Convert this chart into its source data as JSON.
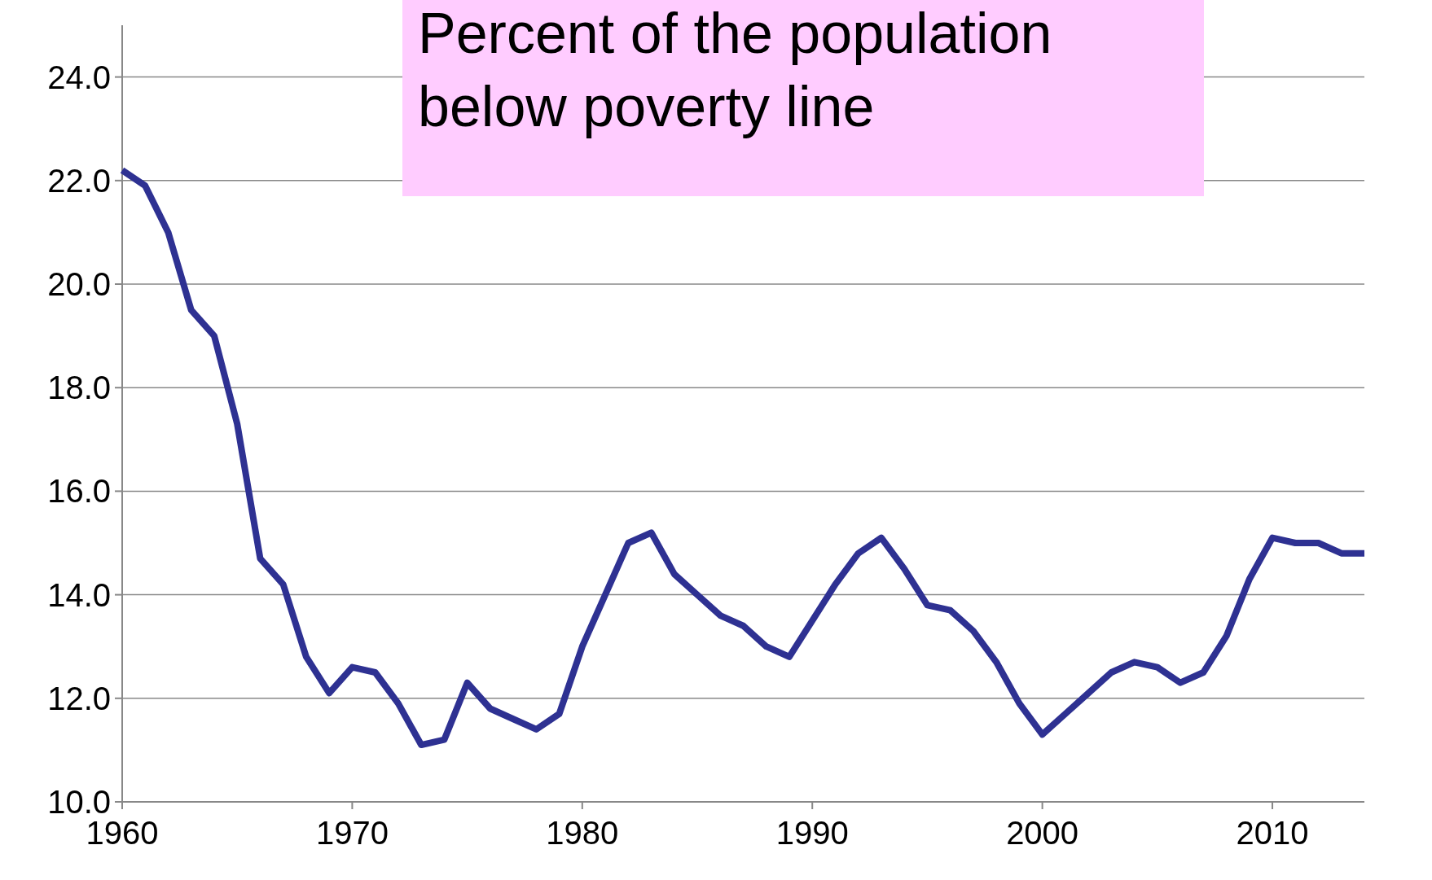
{
  "chart_data": {
    "type": "line",
    "title": "Percent of the population below poverty line",
    "x": [
      1960,
      1961,
      1962,
      1963,
      1964,
      1965,
      1966,
      1967,
      1968,
      1969,
      1970,
      1971,
      1972,
      1973,
      1974,
      1975,
      1976,
      1977,
      1978,
      1979,
      1980,
      1981,
      1982,
      1983,
      1984,
      1985,
      1986,
      1987,
      1988,
      1989,
      1990,
      1991,
      1992,
      1993,
      1994,
      1995,
      1996,
      1997,
      1998,
      1999,
      2000,
      2001,
      2002,
      2003,
      2004,
      2005,
      2006,
      2007,
      2008,
      2009,
      2010,
      2011,
      2012,
      2013,
      2014
    ],
    "series": [
      {
        "color": "#2e3192",
        "values": [
          22.2,
          21.9,
          21.0,
          19.5,
          19.0,
          17.3,
          14.7,
          14.2,
          12.8,
          12.1,
          12.6,
          12.5,
          11.9,
          11.1,
          11.2,
          12.3,
          11.8,
          11.6,
          11.4,
          11.7,
          13.0,
          14.0,
          15.0,
          15.2,
          14.4,
          14.0,
          13.6,
          13.4,
          13.0,
          12.8,
          13.5,
          14.2,
          14.8,
          15.1,
          14.5,
          13.8,
          13.7,
          13.3,
          12.7,
          11.9,
          11.3,
          11.7,
          12.1,
          12.5,
          12.7,
          12.6,
          12.3,
          12.5,
          13.2,
          14.3,
          15.1,
          15.0,
          15.0,
          14.8,
          14.8
        ]
      }
    ],
    "xlim": [
      1960,
      2014
    ],
    "xticks": [
      1960,
      1970,
      1980,
      1990,
      2000,
      2010
    ],
    "ylim": [
      10,
      25
    ],
    "yticks": [
      {
        "value": 10,
        "label": "10.0"
      },
      {
        "value": 12,
        "label": "12.0"
      },
      {
        "value": 14,
        "label": "14.0"
      },
      {
        "value": 16,
        "label": "16.0"
      },
      {
        "value": 18,
        "label": "18.0"
      },
      {
        "value": 20,
        "label": "20.0"
      },
      {
        "value": 22,
        "label": "22.0"
      },
      {
        "value": 24,
        "label": "24.0"
      }
    ],
    "grid": "y",
    "marker": "none",
    "line_style": "solid"
  }
}
